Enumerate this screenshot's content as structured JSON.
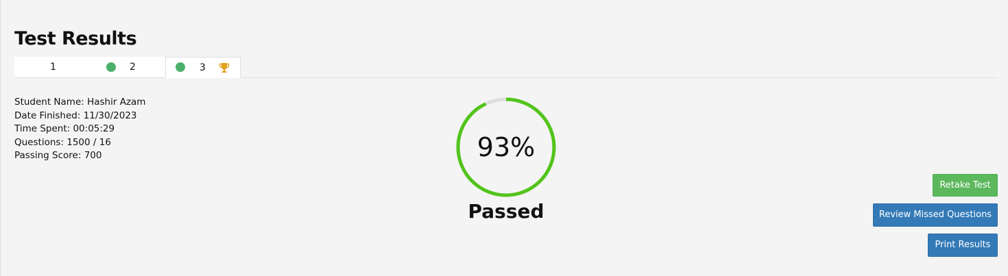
{
  "page": {
    "title": "Test Results"
  },
  "tabs": [
    {
      "label": "1",
      "passed": false,
      "active": false,
      "trophy": false
    },
    {
      "label": "2",
      "passed": true,
      "active": false,
      "trophy": false
    },
    {
      "label": "3",
      "passed": true,
      "active": true,
      "trophy": true
    }
  ],
  "student": {
    "name_line": "Student Name: Hashir Azam",
    "date_line": "Date Finished: 11/30/2023",
    "time_line": "Time Spent: 00:05:29",
    "questions_line": "Questions: 1500 / 16",
    "passing_line": "Passing Score: 700"
  },
  "result": {
    "score_text": "93%",
    "score_fraction": 0.93,
    "status": "Passed"
  },
  "actions": {
    "retake_label": "Retake Test",
    "review_label": "Review Missed Questions",
    "print_label": "Print Results"
  },
  "colors": {
    "pass_green": "#52c41a",
    "gauge_track": "#dddddd",
    "dot_green": "#4caf6b",
    "trophy_gold": "#e0a11b",
    "retake_bg": "#5cb85c",
    "primary_bg": "#337ab7"
  },
  "icons": {
    "tab_status": "green-dot-icon",
    "tab_best": "trophy-icon"
  }
}
